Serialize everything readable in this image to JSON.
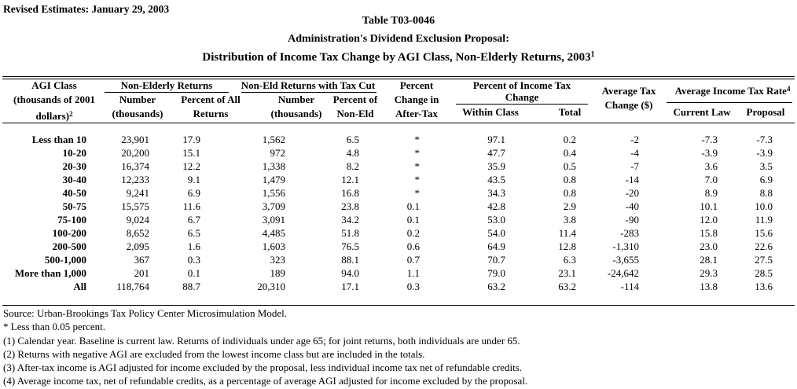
{
  "colors": {
    "text": "#000000",
    "background": "#ffffff"
  },
  "page": {
    "revised_note": "Revised Estimates: January 29, 2003",
    "title_line1": "Table T03-0046",
    "title_line2": "Administration's Dividend Exclusion Proposal:",
    "title_line3": "Distribution of Income Tax Change by AGI Class, Non-Elderly Returns, 2003",
    "title_line3_sup": "1"
  },
  "table": {
    "header": {
      "agi_line1": "AGI Class",
      "agi_line2": "(thousands of 2001",
      "agi_line3": "dollars)",
      "agi_sup": "2",
      "group_non_elderly": "Non-Elderly Returns",
      "ne_number_l1": "Number",
      "ne_number_l2": "(thousands)",
      "ne_pct_l1": "Percent of All",
      "ne_pct_l2": "Returns",
      "group_tax_cut": "Non-Eld Returns with Tax Cut",
      "tc_number_l1": "Number",
      "tc_number_l2": "(thousands)",
      "tc_pct_l1": "Percent of",
      "tc_pct_l2": "Non-Eld",
      "after_tax_l1": "Percent",
      "after_tax_l2": "Change in",
      "after_tax_l3": "After-Tax",
      "group_pct_income_l1": "Percent of Income Tax",
      "group_pct_income_l2": "Change",
      "within_class": "Within Class",
      "total": "Total",
      "avg_tax_l1": "Average Tax",
      "avg_tax_l2": "Change ($)",
      "group_avg_rate": "Average Income Tax Rate",
      "avg_rate_sup": "4",
      "current_law": "Current Law",
      "proposal": "Proposal"
    },
    "rows": [
      {
        "cells": [
          "Less than 10",
          "23,901",
          "17.9",
          "1,562",
          "6.5",
          "*",
          "97.1",
          "0.2",
          "-2",
          "-7.3",
          "-7.3"
        ]
      },
      {
        "cells": [
          "10-20",
          "20,200",
          "15.1",
          "972",
          "4.8",
          "*",
          "47.7",
          "0.4",
          "-4",
          "-3.9",
          "-3.9"
        ]
      },
      {
        "cells": [
          "20-30",
          "16,374",
          "12.2",
          "1,338",
          "8.2",
          "*",
          "35.9",
          "0.5",
          "-7",
          "3.6",
          "3.5"
        ]
      },
      {
        "cells": [
          "30-40",
          "12,233",
          "9.1",
          "1,479",
          "12.1",
          "*",
          "43.5",
          "0.8",
          "-14",
          "7.0",
          "6.9"
        ]
      },
      {
        "cells": [
          "40-50",
          "9,241",
          "6.9",
          "1,556",
          "16.8",
          "*",
          "34.3",
          "0.8",
          "-20",
          "8.9",
          "8.8"
        ]
      },
      {
        "cells": [
          "50-75",
          "15,575",
          "11.6",
          "3,709",
          "23.8",
          "0.1",
          "42.8",
          "2.9",
          "-40",
          "10.1",
          "10.0"
        ]
      },
      {
        "cells": [
          "75-100",
          "9,024",
          "6.7",
          "3,091",
          "34.2",
          "0.1",
          "53.0",
          "3.8",
          "-90",
          "12.0",
          "11.9"
        ]
      },
      {
        "cells": [
          "100-200",
          "8,652",
          "6.5",
          "4,485",
          "51.8",
          "0.2",
          "54.0",
          "11.4",
          "-283",
          "15.8",
          "15.6"
        ]
      },
      {
        "cells": [
          "200-500",
          "2,095",
          "1.6",
          "1,603",
          "76.5",
          "0.6",
          "64.9",
          "12.8",
          "-1,310",
          "23.0",
          "22.6"
        ]
      },
      {
        "cells": [
          "500-1,000",
          "367",
          "0.3",
          "323",
          "88.1",
          "0.7",
          "70.7",
          "6.3",
          "-3,655",
          "28.1",
          "27.5"
        ]
      },
      {
        "cells": [
          "More than 1,000",
          "201",
          "0.1",
          "189",
          "94.0",
          "1.1",
          "79.0",
          "23.1",
          "-24,642",
          "29.3",
          "28.5"
        ]
      },
      {
        "cells": [
          "All",
          "118,764",
          "88.7",
          "20,310",
          "17.1",
          "0.3",
          "63.2",
          "63.2",
          "-114",
          "13.8",
          "13.6"
        ]
      }
    ]
  },
  "footnotes": [
    "Source: Urban-Brookings Tax Policy Center Microsimulation Model.",
    "* Less than 0.05 percent.",
    "(1) Calendar year. Baseline is current law. Returns of individuals under age 65; for joint returns, both individuals are under 65.",
    "(2) Returns with negative AGI are excluded from the lowest income class but are included in the totals.",
    "(3) After-tax income is AGI adjusted for income excluded by the proposal, less individual income tax net of refundable credits.",
    "(4) Average income tax, net of refundable credits, as a percentage of average AGI adjusted for income excluded by the proposal."
  ]
}
